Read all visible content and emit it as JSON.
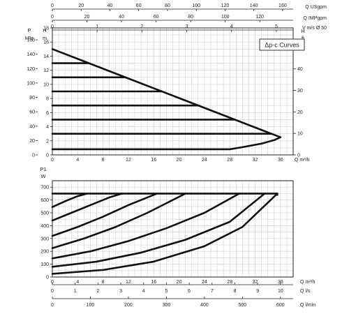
{
  "chart_data": [
    {
      "type": "line",
      "title": "Δp-c Curves",
      "top_scales": [
        {
          "label": "Q USgpm",
          "ticks": [
            0,
            20,
            40,
            60,
            80,
            100,
            120,
            140,
            160
          ]
        },
        {
          "label": "Q IMPgpm",
          "ticks": [
            0,
            20,
            40,
            60,
            80,
            100,
            120
          ]
        },
        {
          "label": "V m/s Ø 50",
          "ticks": [
            0,
            1,
            2,
            3,
            4,
            5
          ]
        }
      ],
      "left_axes": [
        {
          "label": "P",
          "unit": "kPa",
          "ticks": [
            0,
            20,
            40,
            60,
            80,
            100,
            120,
            140,
            160,
            180
          ]
        },
        {
          "label": "H",
          "unit": "m",
          "ticks": [
            0,
            2,
            4,
            6,
            8,
            10,
            12,
            14,
            16,
            18
          ]
        }
      ],
      "right_axis": {
        "label": "H",
        "unit": "ft",
        "ticks": [
          0,
          10,
          20,
          30,
          40,
          50
        ]
      },
      "x_axis": {
        "label": "Q m³/h",
        "ticks": [
          0,
          4,
          8,
          12,
          16,
          20,
          24,
          28,
          32,
          36
        ]
      },
      "xlim": [
        0,
        38
      ],
      "ylim": [
        0,
        18
      ],
      "envelope": {
        "x": [
          0,
          36
        ],
        "y": [
          15,
          2.5
        ]
      },
      "min_curve": {
        "x": [
          0,
          28,
          30,
          33,
          35,
          36
        ],
        "y": [
          0.8,
          0.8,
          1.1,
          1.6,
          2.1,
          2.5
        ]
      },
      "series": [
        {
          "y": 13
        },
        {
          "y": 11
        },
        {
          "y": 9
        },
        {
          "y": 7
        },
        {
          "y": 5
        },
        {
          "y": 3
        }
      ]
    },
    {
      "type": "line",
      "y_axis": {
        "label": "P1",
        "unit": "W",
        "ticks": [
          0,
          100,
          200,
          300,
          400,
          500,
          600,
          700
        ]
      },
      "ylim": [
        0,
        750
      ],
      "xlim": [
        0,
        38
      ],
      "bottom_scales": [
        {
          "label": "Q m³/h",
          "ticks": [
            0,
            4,
            8,
            12,
            16,
            20,
            24,
            28,
            32,
            36
          ]
        },
        {
          "label": "Q l/s",
          "ticks": [
            0,
            1,
            2,
            3,
            4,
            5,
            6,
            7,
            8,
            9,
            10
          ]
        },
        {
          "label": "Q l/min",
          "ticks": [
            0,
            100,
            200,
            300,
            400,
            500,
            600
          ]
        }
      ],
      "max_power": {
        "x": [
          0,
          35.5
        ],
        "y": [
          650,
          650
        ]
      },
      "series": [
        {
          "x": [
            0,
            2,
            4,
            5.5
          ],
          "y": [
            545,
            590,
            630,
            650
          ]
        },
        {
          "x": [
            0,
            3,
            6,
            9,
            11
          ],
          "y": [
            440,
            500,
            560,
            620,
            650
          ]
        },
        {
          "x": [
            0,
            4,
            8,
            12,
            16.5
          ],
          "y": [
            320,
            390,
            470,
            560,
            650
          ]
        },
        {
          "x": [
            0,
            5,
            10,
            15,
            21
          ],
          "y": [
            225,
            300,
            390,
            500,
            650
          ]
        },
        {
          "x": [
            0,
            6,
            12,
            18,
            24,
            29.5
          ],
          "y": [
            145,
            200,
            280,
            380,
            500,
            650
          ]
        },
        {
          "x": [
            0,
            7,
            14,
            21,
            28,
            33.5
          ],
          "y": [
            80,
            120,
            190,
            290,
            430,
            650
          ]
        },
        {
          "x": [
            0,
            8,
            16,
            24,
            30,
            35.5
          ],
          "y": [
            25,
            55,
            120,
            240,
            390,
            650
          ]
        }
      ]
    }
  ]
}
